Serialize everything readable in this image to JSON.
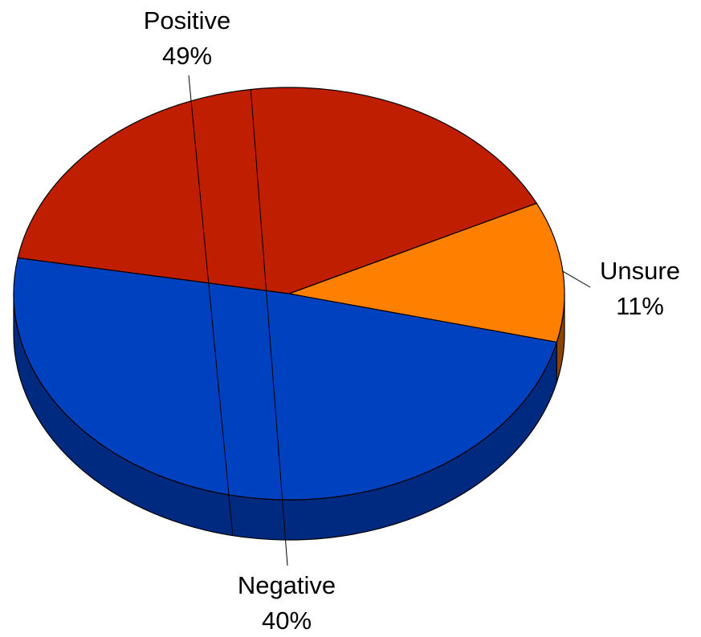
{
  "chart_data": {
    "type": "pie",
    "style": "3d",
    "slices": [
      {
        "name": "Positive",
        "value": 49,
        "label": "49%",
        "color": "#0041C0",
        "side_color": "#002A80"
      },
      {
        "name": "Unsure",
        "value": 11,
        "label": "11%",
        "color": "#FF8000",
        "side_color": "#8A4500"
      },
      {
        "name": "Negative",
        "value": 40,
        "label": "40%",
        "color": "#C01E00",
        "side_color": "#5E1000"
      }
    ],
    "title": "",
    "legend": "none"
  }
}
